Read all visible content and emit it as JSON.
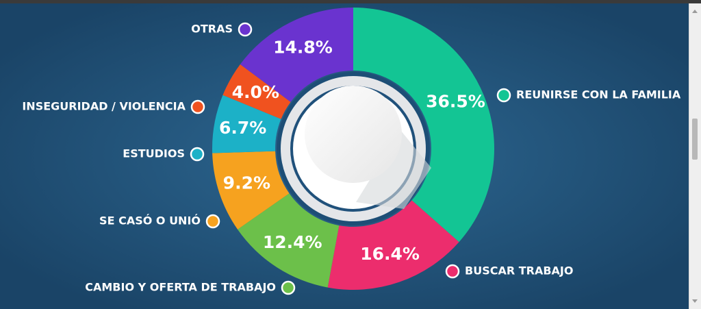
{
  "chart_data": {
    "type": "pie",
    "title": "",
    "categories": [
      "REUNIRSE CON LA FAMILIA",
      "BUSCAR TRABAJO",
      "CAMBIO Y OFERTA DE TRABAJO",
      "SE CASÓ O UNIÓ",
      "ESTUDIOS",
      "INSEGURIDAD / VIOLENCIA",
      "OTRAS"
    ],
    "values": [
      36.5,
      16.4,
      12.4,
      9.2,
      6.7,
      4.0,
      14.8
    ],
    "value_labels": [
      "36.5%",
      "16.4%",
      "12.4%",
      "9.2%",
      "6.7%",
      "4.0%",
      "14.8%"
    ],
    "colors": [
      "#13c594",
      "#ec2d6d",
      "#6cc04a",
      "#f6a21f",
      "#1cb1c7",
      "#f0521f",
      "#6a33cf"
    ],
    "legend_placement": "around"
  }
}
